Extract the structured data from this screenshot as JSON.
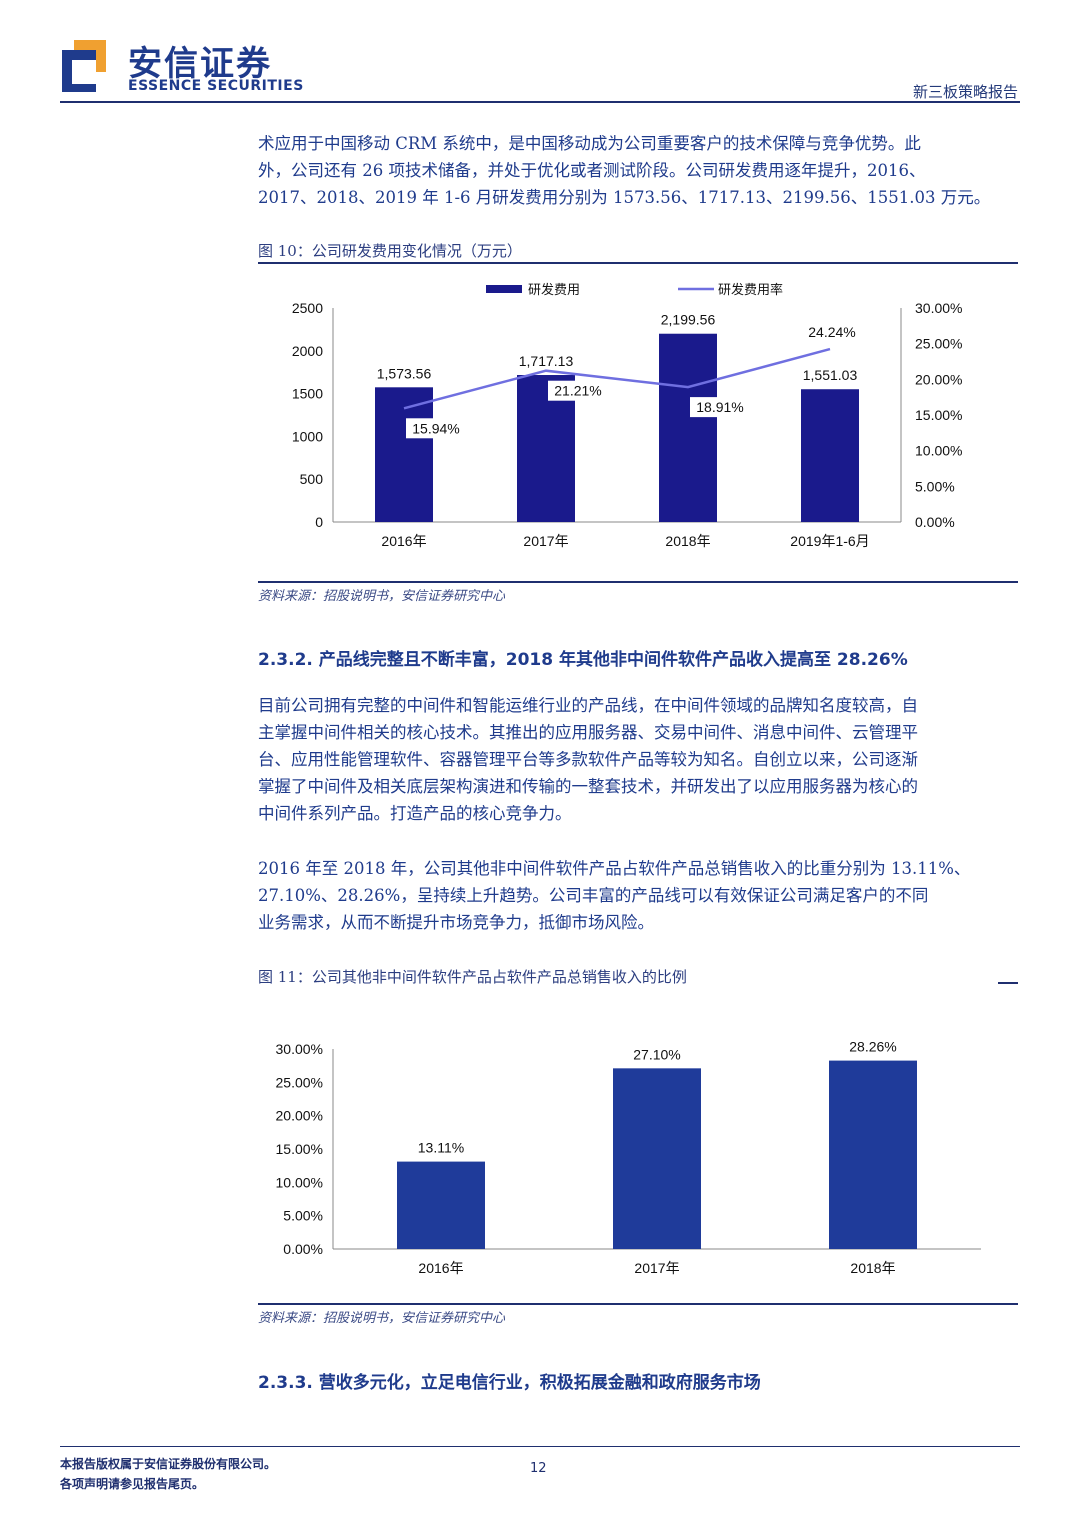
{
  "header": {
    "logo_cn": "安信证券",
    "logo_en": "ESSENCE SECURITIES",
    "report_type": "新三板策略报告"
  },
  "para1": [
    "术应用于中国移动 CRM 系统中，是中国移动成为公司重要客户的技术保障与竞争优势。此",
    "外，公司还有 26 项技术储备，并处于优化或者测试阶段。公司研发费用逐年提升，2016、",
    "2017、2018、2019 年 1-6 月研发费用分别为 1573.56、1717.13、2199.56、1551.03 万元。"
  ],
  "fig10": {
    "title": "图 10：公司研发费用变化情况（万元）",
    "source": "资料来源：招股说明书，安信证券研究中心"
  },
  "section_232": "2.3.2. 产品线完整且不断丰富，2018 年其他非中间件软件产品收入提高至 28.26%",
  "para2": [
    "目前公司拥有完整的中间件和智能运维行业的产品线，在中间件领域的品牌知名度较高，自",
    "主掌握中间件相关的核心技术。其推出的应用服务器、交易中间件、消息中间件、云管理平",
    "台、应用性能管理软件、容器管理平台等多款软件产品等较为知名。自创立以来，公司逐渐",
    "掌握了中间件及相关底层架构演进和传输的一整套技术，并研发出了以应用服务器为核心的",
    "中间件系列产品。打造产品的核心竞争力。"
  ],
  "para3": [
    "2016 年至 2018 年，公司其他非中间件软件产品占软件产品总销售收入的比重分别为 13.11%、",
    "27.10%、28.26%，呈持续上升趋势。公司丰富的产品线可以有效保证公司满足客户的不同",
    "业务需求，从而不断提升市场竞争力，抵御市场风险。"
  ],
  "fig11": {
    "title": "图 11：公司其他非中间件软件产品占软件产品总销售收入的比例",
    "source": "资料来源：招股说明书，安信证券研究中心"
  },
  "section_233": "2.3.3. 营收多元化，立足电信行业，积极拓展金融和政府服务市场",
  "footer": {
    "line1": "本报告版权属于安信证券股份有限公司。",
    "line2": "各项声明请参见报告尾页。",
    "page": "12"
  },
  "colors": {
    "bar": "#1a1a8c",
    "line": "#6f6fe0",
    "bar2": "#1f3b9a",
    "text": "#1f3b8c"
  },
  "chart_data": [
    {
      "type": "bar",
      "categories": [
        "2016年",
        "2017年",
        "2018年",
        "2019年1-6月"
      ],
      "series": [
        {
          "name": "研发费用",
          "type": "bar",
          "axis": "left",
          "values": [
            1573.56,
            1717.13,
            2199.56,
            1551.03
          ],
          "labels": [
            "1,573.56",
            "1,717.13",
            "2,199.56",
            "1,551.03"
          ]
        },
        {
          "name": "研发费用率",
          "type": "line",
          "axis": "right",
          "values": [
            15.94,
            21.21,
            18.91,
            24.24
          ],
          "labels": [
            "15.94%",
            "21.21%",
            "18.91%",
            "24.24%"
          ]
        }
      ],
      "ylim": [
        0,
        2500
      ],
      "yticks": [
        "0",
        "500",
        "1000",
        "1500",
        "2000",
        "2500"
      ],
      "y2lim": [
        0,
        30
      ],
      "y2ticks": [
        "0.00%",
        "5.00%",
        "10.00%",
        "15.00%",
        "20.00%",
        "25.00%",
        "30.00%"
      ],
      "legend": "top-center",
      "grid": false
    },
    {
      "type": "bar",
      "categories": [
        "2016年",
        "2017年",
        "2018年"
      ],
      "values": [
        13.11,
        27.1,
        28.26
      ],
      "labels": [
        "13.11%",
        "27.10%",
        "28.26%"
      ],
      "ylim": [
        0,
        30
      ],
      "yticks": [
        "0.00%",
        "5.00%",
        "10.00%",
        "15.00%",
        "20.00%",
        "25.00%",
        "30.00%"
      ],
      "grid": false
    }
  ]
}
